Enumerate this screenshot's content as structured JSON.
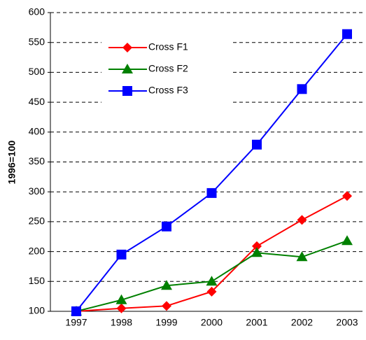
{
  "chart_data": {
    "type": "line",
    "y_label": "1996=100",
    "categories": [
      "1997",
      "1998",
      "1999",
      "2000",
      "2001",
      "2002",
      "2003"
    ],
    "series": [
      {
        "name": "Cross F1",
        "color": "#ff0000",
        "marker": "diamond",
        "values": [
          100,
          105,
          109,
          133,
          209,
          253,
          293
        ]
      },
      {
        "name": "Cross F2",
        "color": "#008000",
        "marker": "triangle",
        "values": [
          100,
          119,
          143,
          150,
          198,
          191,
          218
        ]
      },
      {
        "name": "Cross F3",
        "color": "#0000ff",
        "marker": "square",
        "values": [
          100,
          195,
          242,
          298,
          379,
          472,
          564
        ]
      }
    ],
    "ylim": [
      100,
      600
    ],
    "yticks": [
      100,
      150,
      200,
      250,
      300,
      350,
      400,
      450,
      500,
      550,
      600
    ],
    "grid": true,
    "legend": "upper left"
  }
}
